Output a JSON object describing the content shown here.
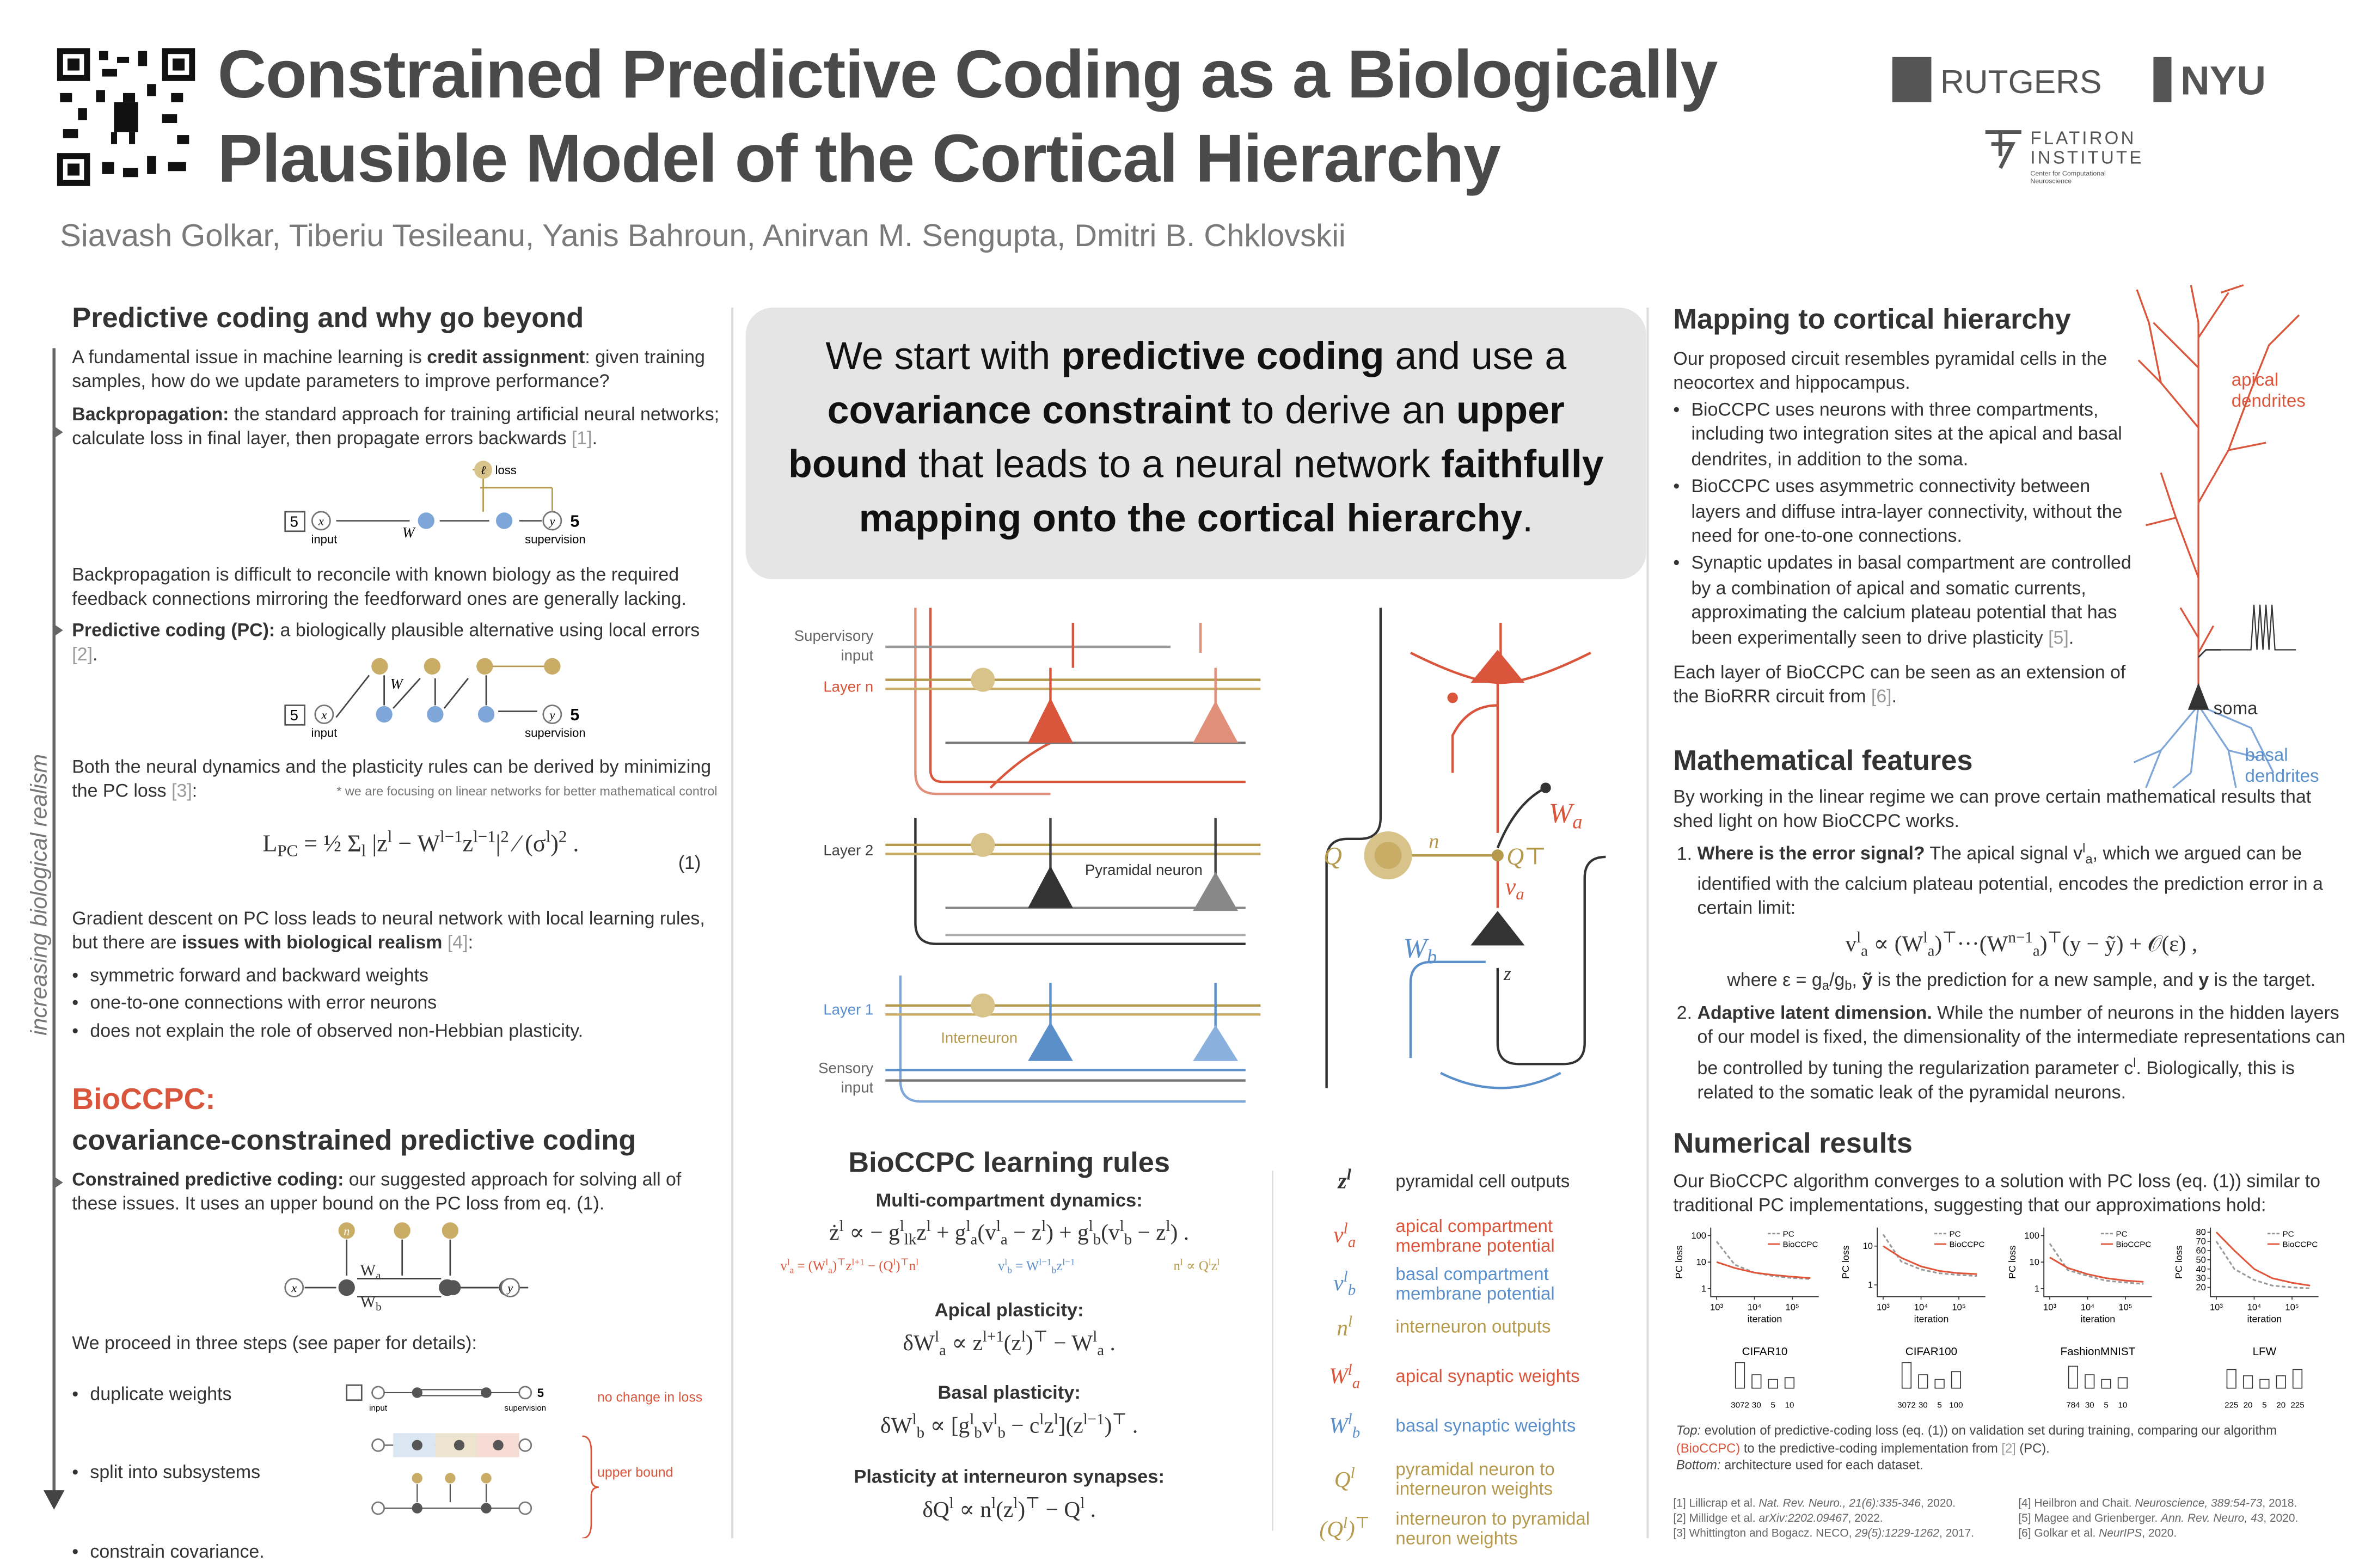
{
  "header": {
    "title_lines": [
      "Constrained Predictive Coding as a Biologically",
      "Plausible Model of the Cortical Hierarchy"
    ],
    "authors": "Siavash Golkar, Tiberiu Tesileanu, Yanis Bahroun, Anirvan M. Sengupta, Dmitri B. Chklovskii",
    "logos": {
      "rutgers": "RUTGERS",
      "nyu": "NYU",
      "flatiron": [
        "FLATIRON",
        "INSTITUTE"
      ],
      "flatiron_sub": [
        "Center for Computational",
        "Neuroscience"
      ]
    }
  },
  "left": {
    "heading": "Predictive coding and why go beyond",
    "p1": [
      "A fundamental issue in machine learning is ",
      {
        "bold": "credit assignment"
      },
      ": given training samples, how do we update parameters to improve performance?"
    ],
    "p2": [
      {
        "bold": "Backpropagation:"
      },
      " the standard approach for training artificial neural networks; calculate loss in final layer, then propagate errors backwards ",
      {
        "cite": "[1]"
      },
      "."
    ],
    "diagram1": {
      "nodes": [
        "x",
        "y",
        "ℓ"
      ],
      "labels": [
        "input",
        "W",
        "supervision",
        "loss",
        "5"
      ]
    },
    "p3": "Backpropagation is difficult to reconcile with known biology as the required feedback connections mirroring the feedforward ones are generally lacking.",
    "p4": [
      {
        "bold": "Predictive coding (PC):"
      },
      " a biologically plausible alternative using local errors ",
      {
        "cite": "[2]"
      },
      "."
    ],
    "diagram2": {
      "nodes": [
        "x",
        "y"
      ],
      "labels": [
        "input",
        "W",
        "supervision",
        "5"
      ]
    },
    "p5": [
      "Both the neural dynamics and the plasticity rules can be derived by minimizing the PC loss ",
      {
        "cite": "[3]"
      },
      ":"
    ],
    "note": "* we are focusing on linear networks for better mathematical control",
    "equation": [
      "L",
      {
        "sub": "PC"
      },
      " = ½ Σ",
      {
        "sub": "l"
      },
      " |z",
      {
        "sup": "l"
      },
      " − W",
      {
        "sup": "l−1"
      },
      "z",
      {
        "sup": "l−1"
      },
      "|",
      {
        "sup": "2"
      },
      " ⁄ (σ",
      {
        "sup": "l"
      },
      ")",
      {
        "sup": "2"
      },
      " ."
    ],
    "equation_number": "(1)",
    "p6": [
      "Gradient descent on PC loss leads to neural network with local learning rules, but there are ",
      {
        "bold": "issues with biological realism"
      },
      " ",
      {
        "cite": "[4]"
      },
      ":"
    ],
    "bullets": [
      "symmetric forward and backward weights",
      "one-to-one connections with error neurons",
      "does not explain the role of observed non-Hebbian plasticity."
    ],
    "side_label": "increasing biological realism",
    "heading2": "BioCCPC:",
    "heading2_sub": "covariance-constrained predictive coding",
    "p7": [
      {
        "bold": "Constrained predictive coding:"
      },
      " our suggested approach for solving all of these issues. It uses an upper bound on the PC loss from eq. (1)."
    ],
    "diagram3": {
      "nodes": [
        "x",
        "y",
        "n"
      ],
      "labels": [
        [
          "W",
          {
            "sub": "a"
          }
        ],
        [
          "W",
          {
            "sub": "b"
          }
        ]
      ]
    },
    "p8": "We proceed in three steps (see paper for details):",
    "steps": [
      "duplicate weights",
      "split into subsystems",
      "constrain covariance."
    ],
    "step_notes": [
      "no  change in loss",
      "upper bound"
    ],
    "step_diagram": {
      "labels": [
        "input",
        "supervision",
        "5"
      ]
    }
  },
  "middle": {
    "callout": [
      "We start with ",
      {
        "bold": "predictive coding"
      },
      " and use a ",
      {
        "bold": "covariance constraint"
      },
      " to derive an ",
      {
        "bold": "upper bound"
      },
      " that leads to a neural network ",
      {
        "bold": "faithfully mapping onto the cortical hierarchy"
      },
      "."
    ],
    "circuit_labels": {
      "supervisory": [
        "Supervisory",
        "input"
      ],
      "layer_n": "Layer n",
      "layer_2": "Layer 2",
      "pyramidal": "Pyramidal neuron",
      "layer_1": "Layer 1",
      "interneuron": "Interneuron",
      "sensory": [
        "Sensory",
        "input"
      ]
    },
    "detail_labels": {
      "Q": "Q",
      "n": "n",
      "QT": "Q⊤",
      "Wa": [
        "W",
        {
          "sub": "a"
        }
      ],
      "va": [
        "v",
        {
          "sub": "a"
        }
      ],
      "Wb": [
        "W",
        {
          "sub": "b"
        }
      ],
      "z": "z"
    },
    "rules": {
      "heading": "BioCCPC learning rules",
      "dynamics_heading": "Multi-compartment dynamics:",
      "dynamics": [
        "ż",
        {
          "sup": "l"
        },
        " ∝ − g",
        {
          "sup": "l"
        },
        {
          "sub": "lk"
        },
        "z",
        {
          "sup": "l"
        },
        " + g",
        {
          "sup": "l"
        },
        {
          "sub": "a"
        },
        "(v",
        {
          "sup": "l"
        },
        {
          "sub": "a"
        },
        " − z",
        {
          "sup": "l"
        },
        ") + g",
        {
          "sup": "l"
        },
        {
          "sub": "b"
        },
        "(v",
        {
          "sup": "l"
        },
        {
          "sub": "b"
        },
        " − z",
        {
          "sup": "l"
        },
        ") ."
      ],
      "dyn_red": [
        "v",
        {
          "sup": "l"
        },
        {
          "sub": "a"
        },
        " = (W",
        {
          "sup": "l"
        },
        {
          "sub": "a"
        },
        ")",
        {
          "sup": "⊤"
        },
        "z",
        {
          "sup": "l+1"
        },
        " − (Q",
        {
          "sup": "l"
        },
        ")",
        {
          "sup": "⊤"
        },
        "n",
        {
          "sup": "l"
        }
      ],
      "dyn_blue": [
        "v",
        {
          "sup": "l"
        },
        {
          "sub": "b"
        },
        " = W",
        {
          "sup": "l−1"
        },
        {
          "sub": "b"
        },
        "z",
        {
          "sup": "l−1"
        }
      ],
      "dyn_gold": [
        "n",
        {
          "sup": "l"
        },
        " ∝ Q",
        {
          "sup": "l"
        },
        "z",
        {
          "sup": "l"
        }
      ],
      "apical_heading": "Apical plasticity:",
      "apical": [
        "δW",
        {
          "sup": "l"
        },
        {
          "sub": "a"
        },
        " ∝ z",
        {
          "sup": "l+1"
        },
        "(z",
        {
          "sup": "l"
        },
        ")",
        {
          "sup": "⊤"
        },
        " − W",
        {
          "sup": "l"
        },
        {
          "sub": "a"
        },
        " ."
      ],
      "basal_heading": "Basal plasticity:",
      "basal": [
        "δW",
        {
          "sup": "l"
        },
        {
          "sub": "b"
        },
        " ∝ [g",
        {
          "sup": "l"
        },
        {
          "sub": "b"
        },
        "v",
        {
          "sup": "l"
        },
        {
          "sub": "b"
        },
        " − c",
        {
          "sup": "l"
        },
        "z",
        {
          "sup": "l"
        },
        "](z",
        {
          "sup": "l−1"
        },
        ")",
        {
          "sup": "⊤"
        },
        " ."
      ],
      "inter_heading": "Plasticity at interneuron synapses:",
      "inter": [
        "δQ",
        {
          "sup": "l"
        },
        " ∝ n",
        {
          "sup": "l"
        },
        "(z",
        {
          "sup": "l"
        },
        ")",
        {
          "sup": "⊤"
        },
        " − Q",
        {
          "sup": "l"
        },
        " ."
      ]
    },
    "legend": [
      {
        "symbol": [
          "z",
          {
            "sup": "l"
          }
        ],
        "text": "pyramidal cell outputs",
        "color": "#333333"
      },
      {
        "symbol": [
          "v",
          {
            "sup": "l"
          },
          {
            "sub": "a"
          }
        ],
        "text": "apical compartment membrane potential",
        "color": "#d9553b"
      },
      {
        "symbol": [
          "v",
          {
            "sup": "l"
          },
          {
            "sub": "b"
          }
        ],
        "text": "basal compartment membrane potential",
        "color": "#5b8fc9"
      },
      {
        "symbol": [
          "n",
          {
            "sup": "l"
          }
        ],
        "text": "interneuron outputs",
        "color": "#b59a4e"
      },
      {
        "symbol": [
          "W",
          {
            "sup": "l"
          },
          {
            "sub": "a"
          }
        ],
        "text": "apical synaptic weights",
        "color": "#d9553b"
      },
      {
        "symbol": [
          "W",
          {
            "sup": "l"
          },
          {
            "sub": "b"
          }
        ],
        "text": "basal synaptic weights",
        "color": "#5b8fc9"
      },
      {
        "symbol": [
          "Q",
          {
            "sup": "l"
          }
        ],
        "text": "pyramidal neuron to interneuron weights",
        "color": "#b59a4e"
      },
      {
        "symbol": [
          "(Q",
          {
            "sup": "l"
          },
          ")",
          {
            "sup": "⊤"
          }
        ],
        "text": "interneuron to pyramidal neuron weights",
        "color": "#b59a4e"
      }
    ]
  },
  "right": {
    "heading1": "Mapping to cortical hierarchy",
    "p1": "Our proposed circuit resembles pyramidal cells in the neocortex and hippocampus.",
    "bullets": [
      "BioCCPC uses neurons with three compartments, including two integration sites at the apical and basal dendrites, in addition to the soma.",
      "BioCCPC uses asymmetric connectivity between layers and diffuse intra-layer connectivity, without the need for one-to-one connections.",
      [
        "Synaptic updates in basal compartment are controlled by a combination of apical and somatic currents, approximating the calcium plateau potential that has been experimentally seen to drive plasticity ",
        {
          "cite": "[5]"
        },
        "."
      ]
    ],
    "p2": [
      "Each layer of BioCCPC can be seen as an extension of the BioRRR circuit from ",
      {
        "cite": "[6]"
      },
      "."
    ],
    "neuron_labels": {
      "apical": [
        "apical",
        "dendrites"
      ],
      "soma": "soma",
      "basal": [
        "basal",
        "dendrites"
      ]
    },
    "heading2": "Mathematical features",
    "p3": "By working in the linear regime we can prove certain mathematical results that shed light on how BioCCPC works.",
    "item1": [
      {
        "bold": "Where is the error signal?"
      },
      " The apical signal v",
      {
        "sup": "l"
      },
      {
        "sub": "a"
      },
      ", which we argued can be identified with the calcium plateau potential, encodes the prediction error in a certain limit:"
    ],
    "item1_eq": [
      "v",
      {
        "sup": "l"
      },
      {
        "sub": "a"
      },
      " ∝ (W",
      {
        "sup": "l"
      },
      {
        "sub": "a"
      },
      ")",
      {
        "sup": "⊤"
      },
      "···(W",
      {
        "sup": "n−1"
      },
      {
        "sub": "a"
      },
      ")",
      {
        "sup": "⊤"
      },
      "(y − ỹ) + 𝒪(ε) ,"
    ],
    "item1_where": [
      "where ε = g",
      {
        "sub": "a"
      },
      "/g",
      {
        "sub": "b"
      },
      ", ",
      {
        "bold": "ỹ"
      },
      " is the prediction for a new sample, and ",
      {
        "bold": "y"
      },
      " is the target."
    ],
    "item2": [
      {
        "bold": "Adaptive latent dimension."
      },
      " While the number of neurons in the hidden layers of our model is fixed, the dimensionality of the intermediate representations can be controlled by tuning the regularization parameter c",
      {
        "sup": "l"
      },
      ". Biologically, this is related to the somatic leak of the pyramidal neurons."
    ],
    "heading3": "Numerical results",
    "p4": "Our BioCCPC algorithm converges to a solution with PC loss (eq. (1)) similar to traditional PC implementations, suggesting that our approximations hold:",
    "plots": [
      {
        "type": "line",
        "title": "CIFAR10",
        "ylabel": "PC loss",
        "xlabel": "iteration",
        "log_x": true,
        "log_y": true,
        "x": [
          1000,
          3000,
          10000,
          30000,
          100000,
          300000
        ],
        "xlim": [
          700,
          500000
        ],
        "xticks": [
          {
            "value": 1000,
            "label": "10³"
          },
          {
            "value": 10000,
            "label": "10⁴"
          },
          {
            "value": 100000,
            "label": "10⁵"
          }
        ],
        "ylim": [
          0.5,
          200
        ],
        "yticks": [
          1,
          10,
          100
        ],
        "series": [
          {
            "name": "PC",
            "color": "#999999",
            "dash": true,
            "values": [
              60,
              8,
              4,
              3,
              2.5,
              2.3
            ]
          },
          {
            "name": "BioCCPC",
            "color": "#e0553a",
            "values": [
              10,
              6,
              4,
              3.3,
              2.8,
              2.5
            ]
          }
        ],
        "architecture": [
          3072,
          30,
          5,
          10
        ]
      },
      {
        "type": "line",
        "title": "CIFAR100",
        "ylabel": "PC loss",
        "xlabel": "iteration",
        "log_x": true,
        "log_y": true,
        "x": [
          1000,
          3000,
          10000,
          30000,
          100000,
          300000
        ],
        "xlim": [
          700,
          500000
        ],
        "xticks": [
          {
            "value": 1000,
            "label": "10³"
          },
          {
            "value": 10000,
            "label": "10⁴"
          },
          {
            "value": 100000,
            "label": "10⁵"
          }
        ],
        "ylim": [
          0.5,
          30
        ],
        "yticks": [
          1,
          10
        ],
        "series": [
          {
            "name": "PC",
            "color": "#999999",
            "dash": true,
            "values": [
              20,
              4,
              2.5,
              2,
              1.8,
              1.7
            ]
          },
          {
            "name": "BioCCPC",
            "color": "#e0553a",
            "values": [
              10,
              5,
              3,
              2.3,
              2,
              1.9
            ]
          }
        ],
        "architecture": [
          3072,
          30,
          5,
          100
        ]
      },
      {
        "type": "line",
        "title": "FashionMNIST",
        "ylabel": "PC loss",
        "xlabel": "iteration",
        "log_x": true,
        "log_y": true,
        "x": [
          1000,
          3000,
          10000,
          30000,
          100000,
          300000
        ],
        "xlim": [
          700,
          500000
        ],
        "xticks": [
          {
            "value": 1000,
            "label": "10³"
          },
          {
            "value": 10000,
            "label": "10⁴"
          },
          {
            "value": 100000,
            "label": "10⁵"
          }
        ],
        "ylim": [
          0.5,
          200
        ],
        "yticks": [
          1,
          10,
          100
        ],
        "series": [
          {
            "name": "PC",
            "color": "#999999",
            "dash": true,
            "values": [
              50,
              5,
              3,
              2,
              1.7,
              1.5
            ]
          },
          {
            "name": "BioCCPC",
            "color": "#e0553a",
            "values": [
              15,
              6,
              3.5,
              2.5,
              2,
              1.8
            ]
          }
        ],
        "architecture": [
          784,
          30,
          5,
          10
        ]
      },
      {
        "type": "line",
        "title": "LFW",
        "ylabel": "PC loss",
        "xlabel": "iteration",
        "log_x": true,
        "log_y": false,
        "x": [
          1000,
          3000,
          10000,
          30000,
          100000,
          300000
        ],
        "xlim": [
          700,
          500000
        ],
        "xticks": [
          {
            "value": 1000,
            "label": "10³"
          },
          {
            "value": 10000,
            "label": "10⁴"
          },
          {
            "value": 100000,
            "label": "10⁵"
          }
        ],
        "ylim": [
          10,
          85
        ],
        "yticks": [
          20,
          30,
          40,
          50,
          60,
          70,
          80
        ],
        "series": [
          {
            "name": "PC",
            "color": "#999999",
            "dash": true,
            "values": [
              70,
              40,
              28,
              22,
              20,
              19
            ]
          },
          {
            "name": "BioCCPC",
            "color": "#e0553a",
            "values": [
              80,
              60,
              40,
              30,
              25,
              22
            ]
          }
        ],
        "architecture": [
          225,
          20,
          5,
          20,
          225
        ]
      }
    ],
    "caption1": [
      {
        "italic": "Top:"
      },
      " evolution of predictive-coding loss (eq. (1)) on validation set during training, comparing our algorithm ",
      {
        "red": "(BioCCPC)"
      },
      " to the predictive-coding implementation from ",
      {
        "cite": "[2]"
      },
      " (PC)."
    ],
    "caption2": [
      {
        "italic": "Bottom:"
      },
      " architecture used for each dataset."
    ],
    "refs": [
      [
        "[1] Lillicrap et al. ",
        {
          "italic": "Nat. Rev. Neuro., 21(6):335-346"
        },
        ", 2020."
      ],
      [
        "[2] Millidge et al. ",
        {
          "italic": "arXiv:2202.09467"
        },
        ", 2022."
      ],
      [
        "[3] Whittington and Bogacz. NECO, ",
        {
          "italic": "29(5):1229-1262"
        },
        ", 2017."
      ],
      [
        "[4] Heilbron and Chait. ",
        {
          "italic": "Neuroscience, 389:54-73"
        },
        ", 2018."
      ],
      [
        "[5] Magee and Grienberger. ",
        {
          "italic": "Ann. Rev. Neuro, 43"
        },
        ", 2020."
      ],
      [
        "[6] Golkar et al. ",
        {
          "italic": "NeurIPS"
        },
        ", 2020."
      ]
    ]
  }
}
